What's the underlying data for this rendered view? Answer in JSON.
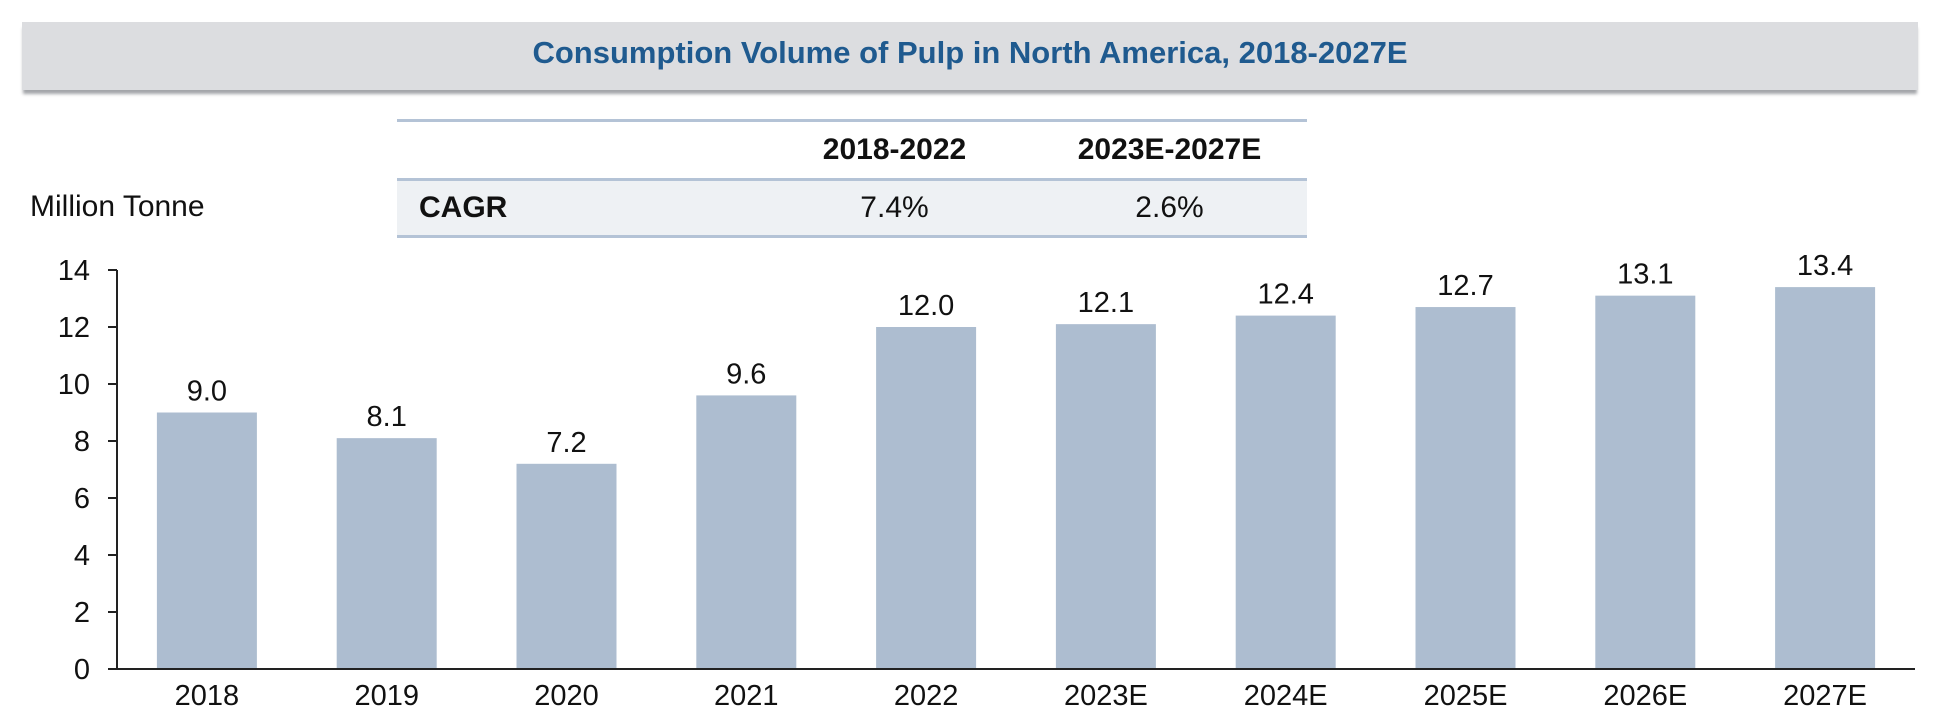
{
  "chart_data": {
    "type": "bar",
    "title": "Consumption Volume of Pulp in North America, 2018-2027E",
    "ylabel": "Million Tonne",
    "xlabel": "",
    "categories": [
      "2018",
      "2019",
      "2020",
      "2021",
      "2022",
      "2023E",
      "2024E",
      "2025E",
      "2026E",
      "2027E"
    ],
    "values": [
      9.0,
      8.1,
      7.2,
      9.6,
      12.0,
      12.1,
      12.4,
      12.7,
      13.1,
      13.4
    ],
    "data_labels": [
      "9.0",
      "8.1",
      "7.2",
      "9.6",
      "12.0",
      "12.1",
      "12.4",
      "12.7",
      "13.1",
      "13.4"
    ],
    "ylim": [
      0,
      14
    ],
    "yticks": [
      0,
      2,
      4,
      6,
      8,
      10,
      12,
      14
    ],
    "grid": false,
    "bar_color": "#adbdd0",
    "title_color": "#1f5a8f"
  },
  "cagr_table": {
    "headers": [
      "",
      "2018-2022",
      "2023E-2027E"
    ],
    "row_label": "CAGR",
    "values": [
      "7.4%",
      "2.6%"
    ]
  }
}
